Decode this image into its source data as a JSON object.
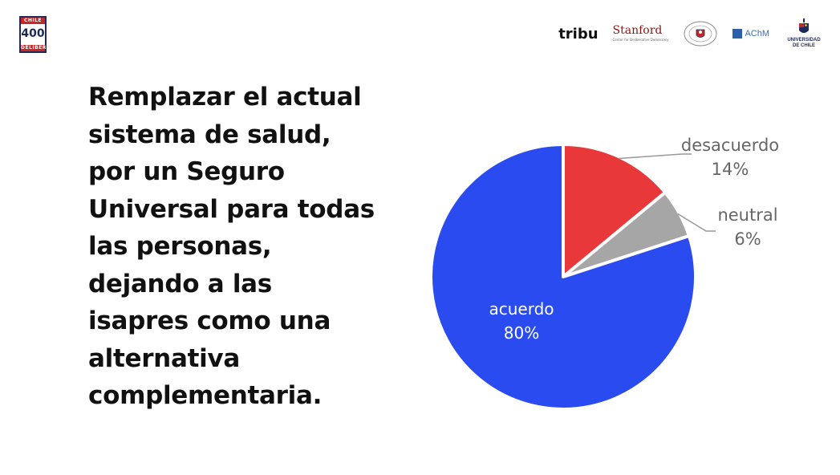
{
  "badge": {
    "top": "CHILE",
    "number": "400",
    "bottom": "DELIBERA"
  },
  "logos": {
    "tribu": "tribu",
    "stanford": "Stanford",
    "stanford_sub": "Center for Deliberative Democracy",
    "seal_icon": "senado-seal-icon",
    "achm": "AChM",
    "uchile": "UNIVERSIDAD DE CHILE"
  },
  "title": "Remplazar el actual sistema de salud, por un Seguro Universal para todas las personas, dejando a las isapres como una alternativa complementaria.",
  "chart_data": {
    "type": "pie",
    "title": "",
    "slices": [
      {
        "label": "desacuerdo",
        "value": 14,
        "display": "14%",
        "color": "#e8383a"
      },
      {
        "label": "neutral",
        "value": 6,
        "display": "6%",
        "color": "#a6a6a6"
      },
      {
        "label": "acuerdo",
        "value": 80,
        "display": "80%",
        "color": "#2a4bf0"
      }
    ]
  }
}
